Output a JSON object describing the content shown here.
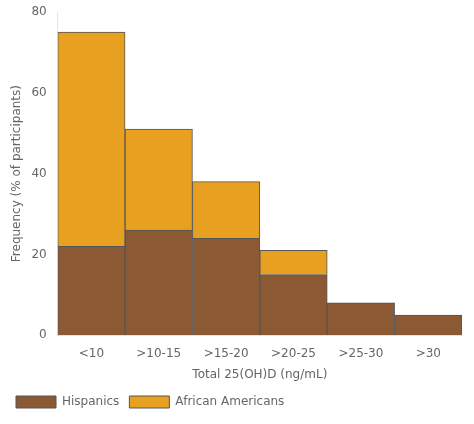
{
  "chart_data": {
    "type": "bar",
    "stacked": true,
    "categories": [
      "<10",
      ">10-15",
      ">15-20",
      ">20-25",
      ">25-30",
      ">30"
    ],
    "series": [
      {
        "name": "Hispanics",
        "color": "#8B5A35",
        "values": [
          22,
          26,
          24,
          15,
          8,
          5
        ]
      },
      {
        "name": "African Americans",
        "color": "#E8A020",
        "values": [
          53,
          25,
          14,
          6,
          0,
          0
        ]
      }
    ],
    "xlabel": "Total 25(OH)D (ng/mL)",
    "ylabel": "Frequency (% of participants)",
    "ylim": [
      0,
      80
    ],
    "yticks": [
      0,
      20,
      40,
      60,
      80
    ],
    "grid": false,
    "legend": "bottom"
  }
}
